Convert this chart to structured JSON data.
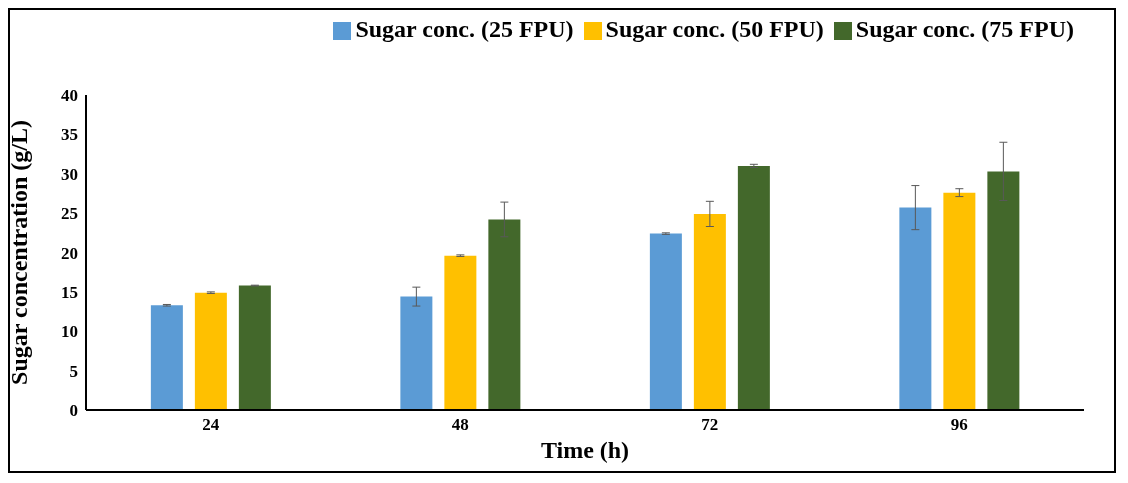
{
  "chart_data": {
    "type": "bar",
    "xlabel": "Time (h)",
    "ylabel": "Sugar concentration (g/L)",
    "categories": [
      "24",
      "48",
      "72",
      "96"
    ],
    "series": [
      {
        "name": "Sugar conc. (25 FPU)",
        "color": "#5b9bd5",
        "values": [
          13.3,
          14.4,
          22.4,
          25.7
        ],
        "errors": [
          0.1,
          1.2,
          0.1,
          2.8
        ]
      },
      {
        "name": "Sugar conc. (50 FPU)",
        "color": "#ffc000",
        "values": [
          14.9,
          19.6,
          24.9,
          27.6
        ],
        "errors": [
          0.1,
          0.1,
          1.6,
          0.5
        ]
      },
      {
        "name": "Sugar conc. (75 FPU)",
        "color": "#43682b",
        "values": [
          15.8,
          24.2,
          31.0,
          30.3
        ],
        "errors": [
          0.05,
          2.2,
          0.2,
          3.7
        ]
      }
    ],
    "ylim": [
      0,
      40
    ],
    "yticks": [
      0,
      5,
      10,
      15,
      20,
      25,
      30,
      35,
      40
    ],
    "grid": false,
    "legend": "top right"
  }
}
